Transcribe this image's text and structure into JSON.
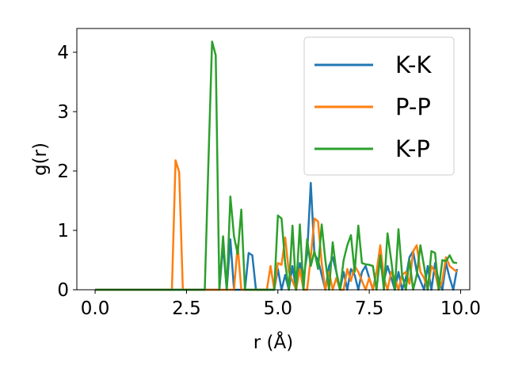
{
  "chart_data": {
    "type": "line",
    "title": "",
    "xlabel": "r (Å)",
    "ylabel": "g(r)",
    "xlim": [
      -0.5,
      10.25
    ],
    "ylim": [
      0,
      4.4
    ],
    "xticks": [
      0.0,
      2.5,
      5.0,
      7.5,
      10.0
    ],
    "xtick_labels": [
      "0.0",
      "2.5",
      "5.0",
      "7.5",
      "10.0"
    ],
    "yticks": [
      0,
      1,
      2,
      3,
      4
    ],
    "ytick_labels": [
      "0",
      "1",
      "2",
      "3",
      "4"
    ],
    "grid": false,
    "legend_position": "upper right",
    "series": [
      {
        "name": "K-K",
        "color": "#1f77b4",
        "x": [
          0.0,
          3.4,
          3.5,
          3.6,
          3.7,
          3.8,
          3.9,
          4.0,
          4.1,
          4.2,
          4.3,
          4.4,
          4.9,
          5.0,
          5.1,
          5.2,
          5.3,
          5.4,
          5.5,
          5.6,
          5.7,
          5.8,
          5.9,
          6.0,
          6.1,
          6.2,
          6.3,
          6.4,
          6.5,
          6.6,
          6.7,
          6.8,
          6.9,
          7.0,
          7.1,
          7.2,
          7.3,
          7.4,
          7.5,
          7.6,
          7.7,
          7.8,
          7.9,
          8.0,
          8.1,
          8.2,
          8.3,
          8.4,
          8.5,
          8.6,
          8.7,
          8.8,
          8.9,
          9.0,
          9.1,
          9.2,
          9.3,
          9.4,
          9.5,
          9.6,
          9.7,
          9.8,
          9.9
        ],
        "values": [
          0.0,
          0.0,
          0.75,
          0.0,
          0.85,
          0.0,
          0.0,
          0.0,
          0.0,
          0.62,
          0.58,
          0.0,
          0.0,
          0.35,
          0.0,
          0.25,
          0.0,
          0.4,
          0.0,
          0.45,
          0.2,
          0.6,
          1.8,
          0.6,
          0.5,
          0.25,
          0.0,
          0.4,
          0.55,
          0.3,
          0.0,
          0.3,
          0.0,
          0.35,
          0.25,
          0.0,
          0.3,
          0.4,
          0.2,
          0.0,
          0.3,
          0.45,
          0.15,
          0.4,
          0.2,
          0.0,
          0.3,
          0.0,
          0.2,
          0.55,
          0.65,
          0.3,
          0.15,
          0.0,
          0.4,
          0.0,
          0.45,
          0.15,
          0.0,
          0.45,
          0.2,
          0.0,
          0.35
        ]
      },
      {
        "name": "P-P",
        "color": "#ff7f0e",
        "x": [
          0.0,
          2.1,
          2.2,
          2.3,
          2.4,
          3.8,
          3.9,
          4.0,
          4.1,
          4.7,
          4.8,
          4.9,
          5.0,
          5.1,
          5.2,
          5.3,
          5.4,
          5.5,
          5.6,
          5.7,
          5.8,
          5.9,
          6.0,
          6.1,
          6.2,
          6.3,
          6.4,
          6.5,
          6.6,
          6.7,
          6.8,
          6.9,
          7.0,
          7.1,
          7.2,
          7.3,
          7.4,
          7.5,
          7.6,
          7.7,
          7.8,
          7.9,
          8.0,
          8.1,
          8.2,
          8.3,
          8.4,
          8.5,
          8.6,
          8.7,
          8.8,
          8.9,
          9.0,
          9.1,
          9.2,
          9.3,
          9.4,
          9.5,
          9.6,
          9.7,
          9.8,
          9.9
        ],
        "values": [
          0.0,
          0.0,
          2.18,
          1.98,
          0.0,
          0.0,
          0.75,
          0.0,
          0.0,
          0.0,
          0.4,
          0.0,
          0.45,
          0.42,
          0.88,
          0.3,
          0.15,
          0.0,
          0.35,
          0.0,
          0.0,
          0.55,
          1.2,
          1.15,
          0.45,
          0.0,
          0.3,
          0.0,
          0.2,
          0.0,
          0.0,
          0.35,
          0.15,
          0.4,
          0.3,
          0.15,
          0.0,
          0.2,
          0.0,
          0.3,
          0.75,
          0.2,
          0.0,
          0.3,
          0.2,
          0.0,
          0.25,
          0.3,
          0.1,
          0.65,
          0.75,
          0.3,
          0.2,
          0.0,
          0.4,
          0.3,
          0.0,
          0.15,
          0.55,
          0.4,
          0.35,
          0.3
        ]
      },
      {
        "name": "K-P",
        "color": "#2ca02c",
        "x": [
          0.0,
          3.0,
          3.1,
          3.2,
          3.3,
          3.4,
          3.5,
          3.6,
          3.7,
          3.8,
          3.9,
          4.0,
          4.1,
          4.9,
          5.0,
          5.1,
          5.2,
          5.3,
          5.4,
          5.5,
          5.6,
          5.7,
          5.8,
          5.9,
          6.0,
          6.1,
          6.2,
          6.3,
          6.4,
          6.5,
          6.6,
          6.7,
          6.8,
          6.9,
          7.0,
          7.1,
          7.2,
          7.3,
          7.4,
          7.5,
          7.6,
          7.7,
          7.8,
          7.9,
          8.0,
          8.1,
          8.2,
          8.3,
          8.4,
          8.5,
          8.6,
          8.7,
          8.8,
          8.9,
          9.0,
          9.1,
          9.2,
          9.3,
          9.4,
          9.5,
          9.6,
          9.7,
          9.8,
          9.9
        ],
        "values": [
          0.0,
          0.0,
          2.15,
          4.18,
          3.95,
          0.0,
          0.9,
          0.0,
          1.57,
          0.9,
          0.6,
          1.35,
          0.0,
          0.0,
          1.25,
          1.2,
          0.45,
          0.0,
          1.08,
          0.0,
          1.1,
          0.0,
          0.85,
          0.4,
          0.65,
          0.35,
          1.1,
          0.5,
          0.0,
          0.8,
          0.3,
          0.0,
          0.5,
          0.75,
          0.92,
          0.3,
          1.08,
          0.45,
          0.43,
          0.42,
          0.4,
          0.0,
          0.58,
          0.0,
          0.95,
          0.5,
          0.0,
          1.02,
          0.25,
          0.0,
          0.5,
          0.0,
          0.25,
          0.75,
          0.4,
          0.0,
          0.65,
          0.62,
          0.0,
          0.5,
          0.48,
          0.58,
          0.46,
          0.45
        ]
      }
    ]
  }
}
